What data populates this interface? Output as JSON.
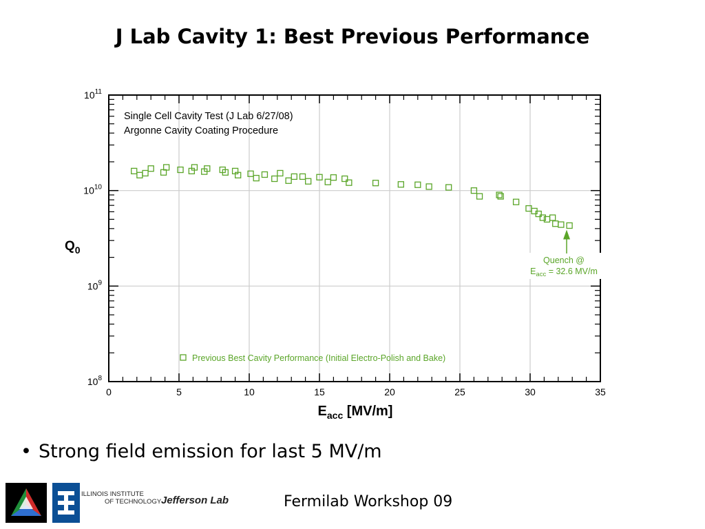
{
  "slide": {
    "title": "J Lab Cavity 1: Best Previous Performance",
    "bullet": "Strong field emission for last 5 MV/m",
    "footer": "Fermilab Workshop 09"
  },
  "logos": {
    "iit_line1": "ILLINOIS INSTITUTE",
    "iit_line2": "OF TECHNOLOGY",
    "jlab": "Jefferson Lab"
  },
  "colors": {
    "series": "#5aa528",
    "grid": "#cccccc",
    "axis": "#000000"
  },
  "chart_data": {
    "type": "scatter",
    "xlabel_main": "E",
    "xlabel_sub": "acc",
    "xlabel_unit": " [MV/m]",
    "ylabel_main": "Q",
    "ylabel_sub": "0",
    "xlim": [
      0,
      35
    ],
    "ylim": [
      100000000,
      100000000000
    ],
    "y_scale": "log",
    "grid": true,
    "x_ticks": [
      "0",
      "5",
      "10",
      "15",
      "20",
      "25",
      "30",
      "35"
    ],
    "y_ticks": [
      {
        "base": "10",
        "exp": "8"
      },
      {
        "base": "10",
        "exp": "9"
      },
      {
        "base": "10",
        "exp": "10"
      },
      {
        "base": "10",
        "exp": "11"
      }
    ],
    "notes": [
      "Single Cell Cavity Test (J Lab 6/27/08)",
      "Argonne Cavity Coating Procedure"
    ],
    "annotation": {
      "line1": "Quench @",
      "line2_main": "E",
      "line2_sub": "acc",
      "line2_rest": " = 32.6 MV/m",
      "x": 32.6
    },
    "legend_position": "bottom-center",
    "series": [
      {
        "name": "Previous Best Cavity Performance (Initial Electro-Polish and Bake)",
        "marker": "open-square",
        "points": [
          [
            1.8,
            16000000000
          ],
          [
            2.2,
            14500000000
          ],
          [
            2.6,
            15200000000
          ],
          [
            3.0,
            17000000000
          ],
          [
            3.9,
            15500000000
          ],
          [
            4.1,
            17500000000
          ],
          [
            5.1,
            16500000000
          ],
          [
            5.9,
            16000000000
          ],
          [
            6.1,
            17500000000
          ],
          [
            6.8,
            15800000000
          ],
          [
            7.0,
            17000000000
          ],
          [
            8.1,
            16500000000
          ],
          [
            8.3,
            15500000000
          ],
          [
            9.0,
            16000000000
          ],
          [
            9.2,
            14500000000
          ],
          [
            10.1,
            15000000000
          ],
          [
            10.5,
            13500000000
          ],
          [
            11.1,
            14700000000
          ],
          [
            11.8,
            13300000000
          ],
          [
            12.2,
            15200000000
          ],
          [
            12.8,
            12700000000
          ],
          [
            13.2,
            14000000000
          ],
          [
            13.8,
            14000000000
          ],
          [
            14.2,
            12500000000
          ],
          [
            15.0,
            13800000000
          ],
          [
            15.6,
            12300000000
          ],
          [
            16.0,
            13700000000
          ],
          [
            16.8,
            13300000000
          ],
          [
            17.1,
            12100000000
          ],
          [
            19.0,
            12000000000
          ],
          [
            20.8,
            11600000000
          ],
          [
            22.0,
            11500000000
          ],
          [
            22.8,
            11000000000
          ],
          [
            24.2,
            10800000000
          ],
          [
            26.0,
            10000000000
          ],
          [
            26.4,
            8700000000
          ],
          [
            27.8,
            9000000000
          ],
          [
            27.9,
            8700000000
          ],
          [
            29.0,
            7600000000
          ],
          [
            29.9,
            6500000000
          ],
          [
            30.3,
            6100000000
          ],
          [
            30.6,
            5700000000
          ],
          [
            30.9,
            5200000000
          ],
          [
            31.2,
            5000000000
          ],
          [
            31.6,
            5200000000
          ],
          [
            31.8,
            4500000000
          ],
          [
            32.2,
            4400000000
          ],
          [
            32.8,
            4300000000
          ]
        ]
      }
    ]
  }
}
